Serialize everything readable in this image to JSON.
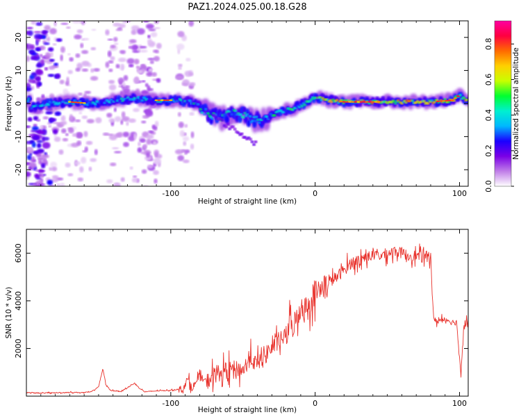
{
  "title": "PAZ1.2024.025.00.18.G28",
  "chart_data": [
    {
      "type": "heatmap",
      "xlabel": "Height of straight line (km)",
      "ylabel": "Frequency (Hz)",
      "xlim": [
        -200,
        106
      ],
      "ylim": [
        -25,
        25
      ],
      "x_ticks": [
        -100,
        0,
        100
      ],
      "y_ticks": [
        -20,
        -10,
        0,
        10,
        20
      ],
      "ridge": {
        "x": [
          -197,
          -185,
          -170,
          -155,
          -140,
          -125,
          -110,
          -95,
          -87,
          -82,
          -78,
          -74,
          -70,
          -65,
          -60,
          -55,
          -50,
          -45,
          -40,
          -35,
          -30,
          -25,
          -20,
          -15,
          -10,
          -5,
          0,
          5,
          10,
          20,
          40,
          60,
          80,
          95,
          100,
          104
        ],
        "y": [
          -1.5,
          0,
          0.5,
          0,
          1,
          1.5,
          1,
          1,
          0.5,
          0,
          -2,
          -3,
          -4,
          -4.5,
          -3,
          -2.5,
          -3.5,
          -4.5,
          -5,
          -4.5,
          -3.5,
          -2.5,
          -2,
          -1.5,
          -0.5,
          0.5,
          2,
          1.5,
          1,
          0.5,
          0.5,
          0.5,
          0.5,
          1,
          2.5,
          1
        ]
      },
      "colorbar": {
        "label": "Normalized spectral amplitude",
        "ticks": [
          0.0,
          0.2,
          0.4,
          0.6,
          0.8
        ],
        "tick_labels": [
          "0.0",
          "0.2",
          "0.4",
          "0.6",
          "0.8"
        ],
        "range": [
          0,
          0.93
        ],
        "colors": [
          "#ffffff",
          "#c07de8",
          "#7a00e6",
          "#1a00ff",
          "#00b8ff",
          "#00f0d0",
          "#00ff30",
          "#c8ff00",
          "#ffd000",
          "#ff6a00",
          "#ff0040",
          "#ff00a0"
        ]
      }
    },
    {
      "type": "line",
      "xlabel": "Height of straight line (km)",
      "ylabel": "SNR (10 * v/v)",
      "xlim": [
        -200,
        106
      ],
      "ylim": [
        0,
        7000
      ],
      "x_ticks": [
        -100,
        0,
        100
      ],
      "y_ticks": [
        2000,
        4000,
        6000
      ],
      "color": "#e8302a",
      "series": [
        {
          "x": [
            -200,
            -190,
            -180,
            -170,
            -160,
            -155,
            -150,
            -147,
            -145,
            -142,
            -135,
            -130,
            -125,
            -122,
            -118,
            -110,
            -100,
            -92,
            -88,
            -85,
            -80,
            -75,
            -70,
            -65,
            -60,
            -55,
            -50,
            -45,
            -40,
            -35,
            -30,
            -25,
            -20,
            -18,
            -15,
            -12,
            -10,
            -8,
            -5,
            -3,
            0,
            3,
            5,
            8,
            10,
            15,
            20,
            25,
            30,
            35,
            40,
            45,
            50,
            55,
            60,
            65,
            70,
            75,
            78,
            80,
            82,
            85,
            90,
            95,
            98,
            100,
            101,
            103,
            106
          ],
          "values": [
            150,
            130,
            140,
            160,
            150,
            180,
            400,
            1150,
            500,
            250,
            200,
            350,
            550,
            350,
            180,
            220,
            250,
            300,
            700,
            350,
            800,
            600,
            900,
            1000,
            1100,
            1150,
            1100,
            1600,
            1300,
            1800,
            2000,
            2300,
            2600,
            2900,
            3000,
            3300,
            3900,
            3600,
            3700,
            4100,
            4400,
            4300,
            4700,
            4600,
            4800,
            5000,
            5300,
            5600,
            5700,
            5850,
            5900,
            5900,
            6000,
            6100,
            6000,
            5900,
            5900,
            5800,
            5900,
            5900,
            3200,
            3150,
            3250,
            3100,
            3100,
            1600,
            900,
            3100,
            3150
          ]
        }
      ]
    }
  ]
}
